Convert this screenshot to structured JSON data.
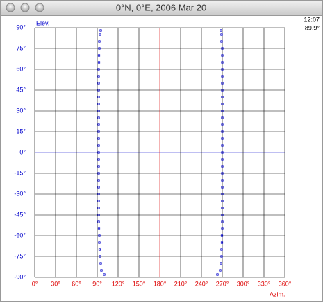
{
  "chart_data": {
    "type": "scatter",
    "title": "0°N, 0°E, 2006 Mar 20",
    "xlabel": "Azim.",
    "ylabel": "Elev.",
    "annotations": [
      "12:07",
      "89.9°"
    ],
    "xlim": [
      0,
      360
    ],
    "ylim": [
      -90,
      90
    ],
    "xticks": [
      {
        "value": 0,
        "label": "0°"
      },
      {
        "value": 30,
        "label": "30°"
      },
      {
        "value": 60,
        "label": "60°"
      },
      {
        "value": 90,
        "label": "90°"
      },
      {
        "value": 120,
        "label": "120°"
      },
      {
        "value": 150,
        "label": "150°"
      },
      {
        "value": 180,
        "label": "180°"
      },
      {
        "value": 210,
        "label": "210°"
      },
      {
        "value": 240,
        "label": "240°"
      },
      {
        "value": 270,
        "label": "270°"
      },
      {
        "value": 300,
        "label": "300°"
      },
      {
        "value": 330,
        "label": "330°"
      },
      {
        "value": 360,
        "label": "360°"
      }
    ],
    "yticks": [
      {
        "value": 90,
        "label": "90°"
      },
      {
        "value": 75,
        "label": "75°"
      },
      {
        "value": 60,
        "label": "60°"
      },
      {
        "value": 45,
        "label": "45°"
      },
      {
        "value": 30,
        "label": "30°"
      },
      {
        "value": 15,
        "label": "15°"
      },
      {
        "value": 0,
        "label": "0°"
      },
      {
        "value": -15,
        "label": "-15°"
      },
      {
        "value": -30,
        "label": "-30°"
      },
      {
        "value": -45,
        "label": "-45°"
      },
      {
        "value": -60,
        "label": "-60°"
      },
      {
        "value": -75,
        "label": "-75°"
      },
      {
        "value": -90,
        "label": "-90°"
      }
    ],
    "grid": true,
    "grid_color": "#000000",
    "x_label_color": "#dd0000",
    "y_label_color": "#0000cc",
    "reference_lines": {
      "x": 180,
      "x_color": "#dd0000",
      "y": 0,
      "y_color": "#0000cc"
    },
    "series": [
      {
        "color": "#0000cc",
        "x": [
          95,
          94,
          93,
          93,
          92.5,
          92.5,
          92,
          92,
          92,
          92,
          92,
          92,
          92,
          92,
          92,
          92,
          92,
          92,
          92,
          92,
          92,
          92,
          92,
          92,
          92,
          92,
          92,
          92,
          92,
          92.5,
          93,
          93,
          93.5,
          94,
          95,
          96,
          100
        ],
        "values": [
          88,
          85,
          80,
          75,
          70,
          65,
          60,
          55,
          50,
          45,
          40,
          35,
          30,
          25,
          20,
          15,
          10,
          5,
          0,
          -5,
          -10,
          -15,
          -20,
          -25,
          -30,
          -35,
          -40,
          -45,
          -50,
          -55,
          -60,
          -65,
          -70,
          -75,
          -80,
          -85,
          -88
        ]
      },
      {
        "color": "#0000cc",
        "x": [
          268,
          269,
          269,
          270,
          270,
          270,
          270,
          270,
          270,
          270,
          270,
          270,
          270,
          270,
          270,
          270,
          270,
          270,
          270,
          270,
          270,
          270,
          270,
          270,
          270,
          270,
          270,
          270,
          270,
          270,
          269.5,
          269.5,
          269,
          269,
          268,
          267,
          263
        ],
        "values": [
          88,
          85,
          80,
          75,
          70,
          65,
          60,
          55,
          50,
          45,
          40,
          35,
          30,
          25,
          20,
          15,
          10,
          5,
          0,
          -5,
          -10,
          -15,
          -20,
          -25,
          -30,
          -35,
          -40,
          -45,
          -50,
          -55,
          -60,
          -65,
          -70,
          -75,
          -80,
          -85,
          -88
        ]
      }
    ]
  }
}
